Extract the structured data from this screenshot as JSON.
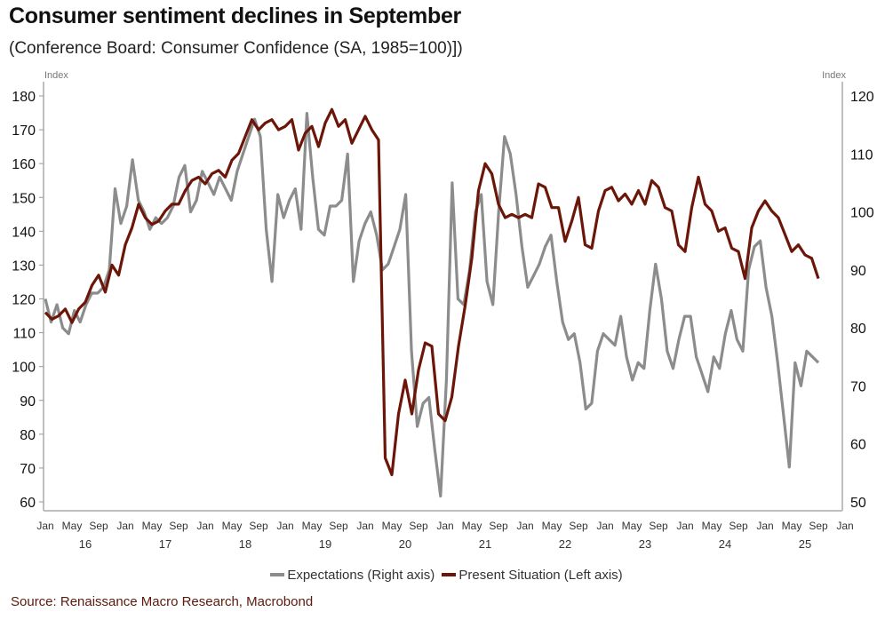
{
  "title": "Consumer sentiment declines in September",
  "subtitle": "(Conference Board: Consumer Confidence (SA, 1985=100)])",
  "source": "Source: Renaissance Macro Research, Macrobond",
  "chart_data": {
    "type": "line",
    "title": "Consumer sentiment declines in September",
    "subtitle": "(Conference Board: Consumer Confidence (SA, 1985=100)])",
    "left_axis": {
      "label": "Index",
      "ylim": [
        60,
        180
      ],
      "ticks": [
        180,
        170,
        160,
        150,
        140,
        130,
        120,
        110,
        100,
        90,
        80,
        70,
        60
      ]
    },
    "right_axis": {
      "label": "Index",
      "ylim": [
        50,
        120
      ],
      "ticks": [
        120,
        110,
        100,
        90,
        80,
        70,
        60,
        50
      ]
    },
    "x_start": "2016-01",
    "x_ticks": [
      "Jan",
      "May",
      "Sep",
      "Jan",
      "May",
      "Sep",
      "Jan",
      "May",
      "Sep",
      "Jan",
      "May",
      "Sep",
      "Jan",
      "May",
      "Sep",
      "Jan",
      "May",
      "Sep",
      "Jan",
      "May",
      "Sep",
      "Jan",
      "May",
      "Sep",
      "Jan",
      "May",
      "Sep",
      "Jan",
      "May",
      "Sep",
      "Jan"
    ],
    "year_labels": [
      "16",
      "17",
      "18",
      "19",
      "20",
      "21",
      "22",
      "23",
      "24",
      "25"
    ],
    "grid": false,
    "legend_position": "bottom",
    "colors": {
      "expectations": "#8c8c8c",
      "present": "#6b1608",
      "axis": "#bfbfbf"
    },
    "series": [
      {
        "name": "Expectations (Right axis)",
        "axis": "right",
        "values": [
          85,
          81,
          84,
          80,
          79,
          83,
          81,
          84,
          86,
          86,
          87,
          90,
          104,
          98,
          101,
          109,
          102,
          100,
          97,
          99,
          98,
          99,
          101,
          106,
          108,
          100,
          102,
          107,
          105,
          103,
          106,
          104,
          102,
          107,
          110,
          113,
          116,
          113,
          97,
          88,
          103,
          99,
          102,
          104,
          97,
          117,
          106,
          97,
          96,
          101,
          101,
          102,
          110,
          88,
          95,
          98,
          100,
          96,
          90,
          91,
          94,
          97,
          103,
          76,
          63,
          67,
          68,
          59,
          51,
          71,
          105,
          85,
          84,
          90,
          100,
          103,
          88,
          84,
          100,
          113,
          110,
          103,
          94,
          87,
          89,
          91,
          94,
          96,
          88,
          81,
          78,
          79,
          74,
          66,
          67,
          76,
          79,
          78,
          77,
          82,
          75,
          71,
          74,
          73,
          83,
          91,
          85,
          76,
          73,
          78,
          82,
          82,
          75,
          72,
          69,
          75,
          73,
          79,
          83,
          78,
          76,
          90,
          94,
          95,
          87,
          82,
          74,
          65,
          56,
          74,
          70,
          76,
          75,
          74
        ]
      },
      {
        "name": "Present Situation (Left axis)",
        "axis": "left",
        "values": [
          116,
          114,
          115,
          117,
          113,
          117,
          119,
          124,
          127,
          122,
          130,
          127,
          136,
          141,
          148,
          144,
          142,
          143,
          146,
          148,
          148,
          152,
          155,
          156,
          154,
          157,
          158,
          156,
          161,
          163,
          168,
          173,
          170,
          172,
          173,
          170,
          171,
          173,
          164,
          169,
          171,
          165,
          172,
          176,
          171,
          173,
          166,
          170,
          174,
          170,
          167,
          73,
          68,
          86,
          96,
          86,
          99,
          107,
          106,
          86,
          84,
          91,
          106,
          118,
          132,
          152,
          160,
          157,
          148,
          144,
          145,
          144,
          145,
          144,
          154,
          153,
          147,
          147,
          137,
          143,
          150,
          136,
          135,
          146,
          152,
          153,
          149,
          151,
          148,
          152,
          148,
          155,
          153,
          147,
          146,
          136,
          134,
          147,
          156,
          148,
          146,
          140,
          141,
          135,
          134,
          126,
          141,
          146,
          149,
          146,
          144,
          139,
          134,
          136,
          133,
          132,
          126
        ]
      }
    ]
  }
}
